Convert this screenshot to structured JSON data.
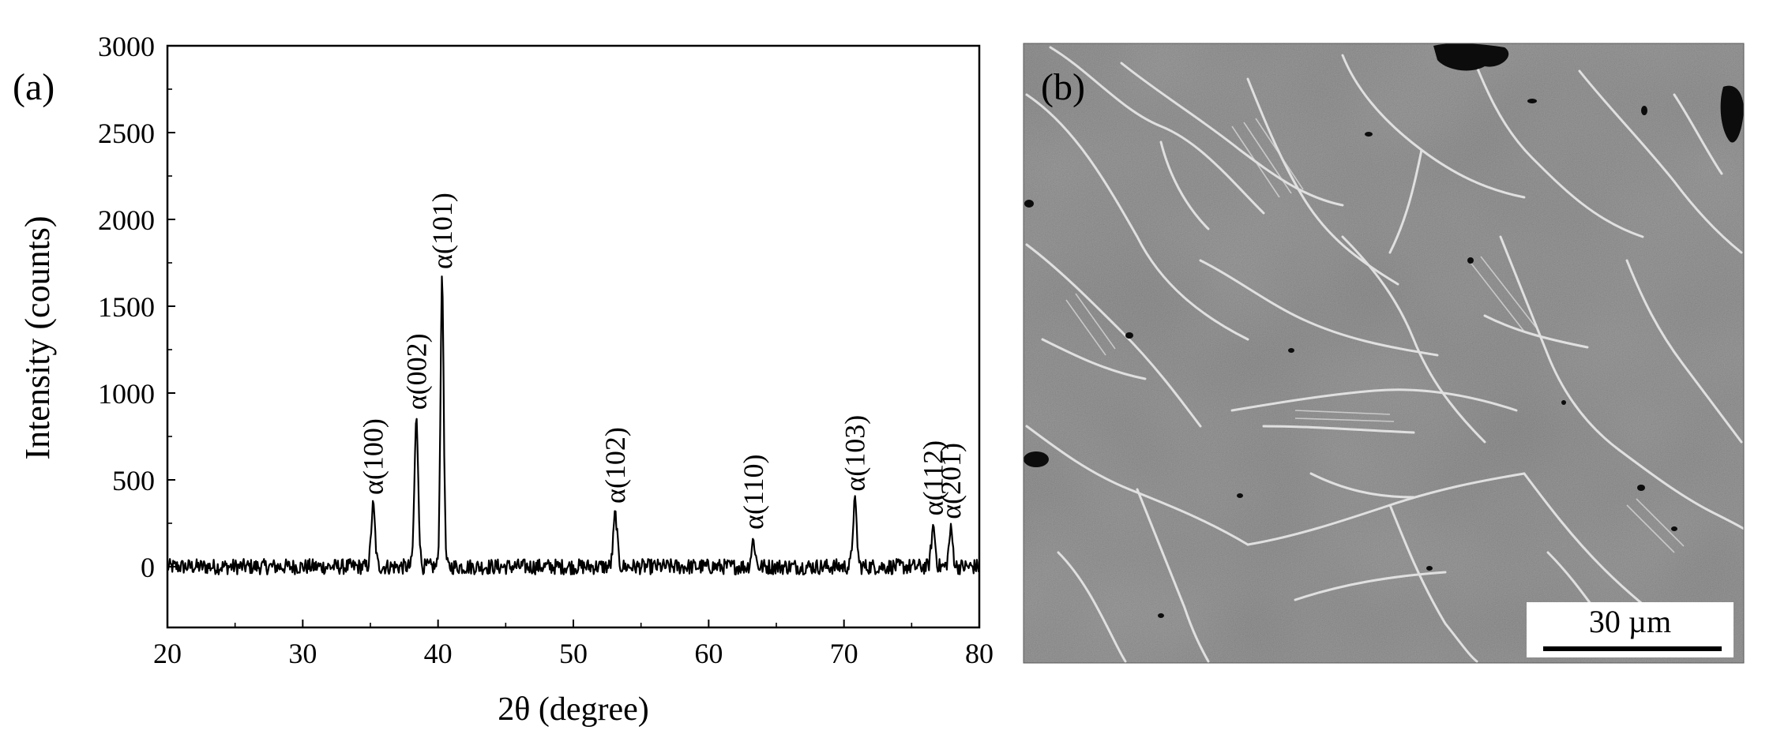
{
  "panel_a_label": "(a)",
  "panel_b_label": "(b)",
  "scale_bar_text": "30 µm",
  "colors": {
    "line": "#000000",
    "background": "#ffffff",
    "micrograph_gray": "#7e7e7e",
    "grain_boundary": "#e6e6e6"
  },
  "chart_data": {
    "type": "line",
    "xlabel": "2θ (degree)",
    "ylabel": "Intensity (counts)",
    "xlim": [
      20,
      80
    ],
    "ylim": [
      -350,
      3000
    ],
    "xticks": [
      20,
      30,
      40,
      50,
      60,
      70,
      80
    ],
    "yticks": [
      0,
      500,
      1000,
      1500,
      2000,
      2500,
      3000
    ],
    "grid": false,
    "peaks": [
      {
        "label": "α(100)",
        "x": 35.2,
        "y": 350
      },
      {
        "label": "α(002)",
        "x": 38.4,
        "y": 840
      },
      {
        "label": "α(101)",
        "x": 40.3,
        "y": 1650
      },
      {
        "label": "α(102)",
        "x": 53.1,
        "y": 300
      },
      {
        "label": "α(110)",
        "x": 63.3,
        "y": 150
      },
      {
        "label": "α(103)",
        "x": 70.8,
        "y": 370
      },
      {
        "label": "α(112)",
        "x": 76.6,
        "y": 230
      },
      {
        "label": "α(201)",
        "x": 77.9,
        "y": 210
      }
    ]
  }
}
